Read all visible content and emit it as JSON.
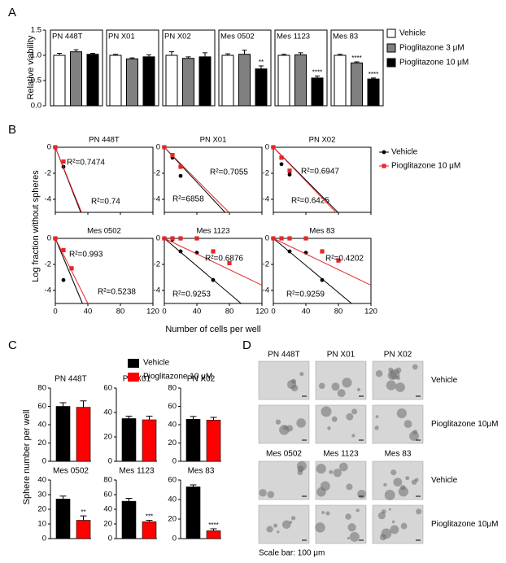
{
  "panels": [
    "A",
    "B",
    "C",
    "D"
  ],
  "chart_data": [
    {
      "type": "bar",
      "ylabel": "Relative viability",
      "ylim": [
        0,
        1.5
      ],
      "yticks": [
        {
          "value": 0,
          "label": "0.0"
        },
        {
          "value": 0.5,
          "label": "0.5"
        },
        {
          "value": 1,
          "label": "1.0"
        },
        {
          "value": 1.5,
          "label": "1.5"
        }
      ],
      "categories": [
        "PN 448T",
        "PN X01",
        "PN X02",
        "Mes 0502",
        "Mes 1123",
        "Mes 83"
      ],
      "series": [
        {
          "name": "Vehicle",
          "color": "#ffffff",
          "values": [
            1.0,
            1.0,
            1.0,
            1.0,
            1.0,
            1.0
          ],
          "errors": [
            0.04,
            0.02,
            0.07,
            0.03,
            0.02,
            0.02
          ],
          "significance": [
            null,
            null,
            null,
            null,
            null,
            null
          ]
        },
        {
          "name": "Pioglitazone 3 μM",
          "color": "#808080",
          "values": [
            1.07,
            0.93,
            0.94,
            1.02,
            1.01,
            0.85
          ],
          "errors": [
            0.04,
            0.02,
            0.03,
            0.08,
            0.04,
            0.02
          ],
          "significance": [
            null,
            null,
            null,
            null,
            null,
            "****"
          ]
        },
        {
          "name": "Pioglitazone 10 μM",
          "color": "#000000",
          "values": [
            1.02,
            0.97,
            0.97,
            0.73,
            0.55,
            0.53
          ],
          "errors": [
            0.02,
            0.04,
            0.08,
            0.06,
            0.04,
            0.02
          ],
          "significance": [
            null,
            null,
            null,
            "**",
            "****",
            "****"
          ]
        }
      ]
    },
    {
      "type": "scatter",
      "xlabel": "Number of cells per well",
      "ylabel": "Log fraction without spheres",
      "xlim": [
        0,
        120
      ],
      "xticks": [
        0,
        40,
        80,
        120
      ],
      "ylim": [
        -5,
        0
      ],
      "yticks": [
        0,
        -2,
        -4
      ],
      "series": [
        {
          "name": "Vehicle",
          "color": "#000000",
          "marker": "circle"
        },
        {
          "name": "Pioglitazone 10 μM",
          "color": "#e8262a",
          "marker": "square"
        }
      ],
      "subplots": [
        {
          "title": "PN 448T",
          "series": [
            {
              "x": [
                0,
                10
              ],
              "values": [
                0,
                -1.5
              ],
              "fit_slope": -0.16,
              "annotation": "R²=0.74"
            },
            {
              "x": [
                0,
                10
              ],
              "values": [
                0,
                -1.1
              ],
              "fit_slope": -0.155,
              "annotation": "R²=0.7474"
            }
          ]
        },
        {
          "title": "PN X01",
          "series": [
            {
              "x": [
                0,
                10,
                20
              ],
              "values": [
                0,
                -0.8,
                -2.2
              ],
              "fit_slope": -0.067,
              "annotation": "R²=6858"
            },
            {
              "x": [
                0,
                10,
                20
              ],
              "values": [
                0,
                -0.6,
                -1.5
              ],
              "fit_slope": -0.063,
              "annotation": "R²=0.7055"
            }
          ]
        },
        {
          "title": "PN X02",
          "series": [
            {
              "x": [
                0,
                10,
                20,
                20
              ],
              "values": [
                0,
                -1.3,
                -1.9,
                -2.1
              ],
              "fit_slope": -0.063,
              "annotation": "R²=0.6425"
            },
            {
              "x": [
                0,
                10,
                20
              ],
              "values": [
                0,
                -0.8,
                -1.8
              ],
              "fit_slope": -0.065,
              "annotation": "R²=0.6947"
            }
          ]
        },
        {
          "title": "Mes 0502",
          "series": [
            {
              "x": [
                0,
                10
              ],
              "values": [
                0,
                -3.2
              ],
              "fit_slope": -0.15,
              "annotation": "R²=0.5238"
            },
            {
              "x": [
                0,
                10,
                20
              ],
              "values": [
                0,
                -0.9,
                -2.3
              ],
              "fit_slope": -0.125,
              "annotation": "R²=0.993"
            }
          ]
        },
        {
          "title": "Mes 1123",
          "series": [
            {
              "x": [
                0,
                10,
                20,
                40,
                60
              ],
              "values": [
                0,
                -0.1,
                -1.0,
                -1.1,
                -3.2
              ],
              "fit_slope": -0.053,
              "annotation": "R²=0.9253"
            },
            {
              "x": [
                0,
                10,
                20,
                40,
                60,
                80
              ],
              "values": [
                0,
                0,
                0,
                0,
                -1.0,
                -1.9
              ],
              "fit_slope": -0.03,
              "annotation": "R²=0.6876"
            }
          ]
        },
        {
          "title": "Mes 83",
          "series": [
            {
              "x": [
                0,
                10,
                20,
                40,
                60
              ],
              "values": [
                0,
                0,
                -1.0,
                -1.1,
                -3.2
              ],
              "fit_slope": -0.052,
              "annotation": "R²=0.9259"
            },
            {
              "x": [
                0,
                10,
                20,
                40,
                60,
                80
              ],
              "values": [
                0,
                0,
                0,
                0,
                -1.0,
                -1.7
              ],
              "fit_slope": -0.03,
              "annotation": "R²=0.4202"
            }
          ]
        }
      ]
    },
    {
      "type": "bar",
      "ylabel": "Sphere number per well",
      "series": [
        {
          "name": "Vehicle",
          "color": "#000000"
        },
        {
          "name": "Pioglitazone 10 μM",
          "color": "#ff0000"
        }
      ],
      "subplots": [
        {
          "title": "PN 448T",
          "ylim": [
            0,
            80
          ],
          "yticks": [
            0,
            20,
            40,
            60,
            80
          ],
          "values": [
            60,
            59
          ],
          "errors": [
            4,
            7
          ],
          "significance": [
            null,
            null
          ]
        },
        {
          "title": "PN X01",
          "ylim": [
            0,
            60
          ],
          "yticks": [
            0,
            20,
            40,
            60
          ],
          "values": [
            35,
            34
          ],
          "errors": [
            2,
            3
          ],
          "significance": [
            null,
            null
          ]
        },
        {
          "title": "PN X02",
          "ylim": [
            0,
            80
          ],
          "yticks": [
            0,
            20,
            40,
            60,
            80
          ],
          "values": [
            46,
            45
          ],
          "errors": [
            3,
            3
          ],
          "significance": [
            null,
            null
          ]
        },
        {
          "title": "Mes 0502",
          "ylim": [
            0,
            40
          ],
          "yticks": [
            0,
            10,
            20,
            30,
            40
          ],
          "values": [
            27,
            12.5
          ],
          "errors": [
            2,
            3
          ],
          "significance": [
            null,
            "**"
          ]
        },
        {
          "title": "Mes 1123",
          "ylim": [
            0,
            80
          ],
          "yticks": [
            0,
            20,
            40,
            60,
            80
          ],
          "values": [
            51,
            23
          ],
          "errors": [
            4,
            2
          ],
          "significance": [
            null,
            "***"
          ]
        },
        {
          "title": "Mes 83",
          "ylim": [
            0,
            60
          ],
          "yticks": [
            0,
            20,
            40,
            60
          ],
          "values": [
            53,
            8
          ],
          "errors": [
            2,
            2
          ],
          "significance": [
            null,
            "****"
          ]
        }
      ]
    }
  ],
  "images": {
    "groups": [
      {
        "columns": [
          "PN 448T",
          "PN X01",
          "PN X02"
        ],
        "rows": [
          "Vehicle",
          "Pioglitazone 10μM"
        ]
      },
      {
        "columns": [
          "Mes 0502",
          "Mes 1123",
          "Mes 83"
        ],
        "rows": [
          "Vehicle",
          "Pioglitazone 10μM"
        ]
      }
    ],
    "scale_bar": "Scale bar: 100 μm"
  }
}
